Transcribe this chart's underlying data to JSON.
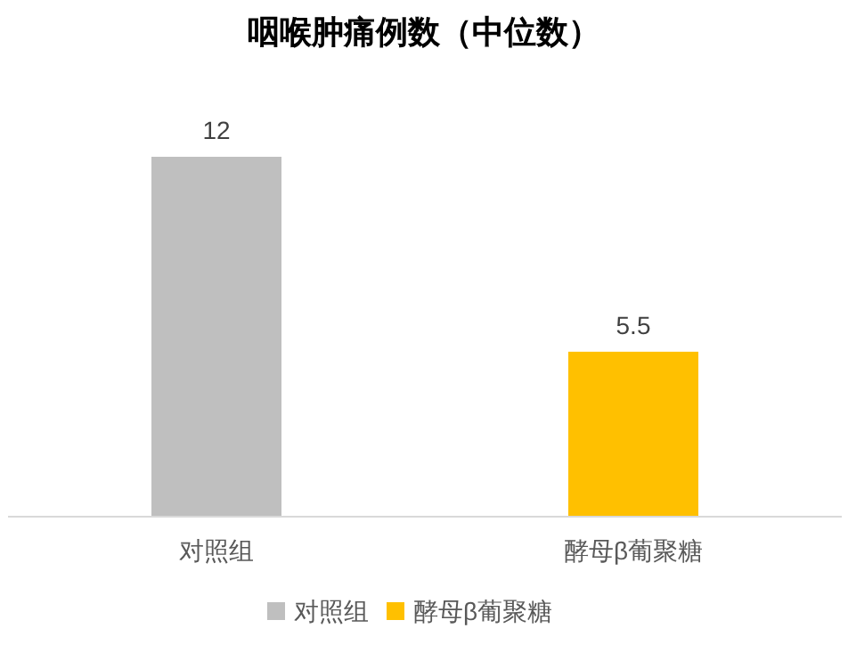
{
  "chart_data": {
    "type": "bar",
    "title": "咽喉肿痛例数（中位数）",
    "categories": [
      "对照组",
      "酵母β葡聚糖"
    ],
    "series": [
      {
        "name": "对照组",
        "color": "#bfbfbf",
        "values": [
          12,
          null
        ]
      },
      {
        "name": "酵母β葡聚糖",
        "color": "#ffc000",
        "values": [
          null,
          5.5
        ]
      }
    ],
    "data_labels": true,
    "legend": "bottom"
  }
}
